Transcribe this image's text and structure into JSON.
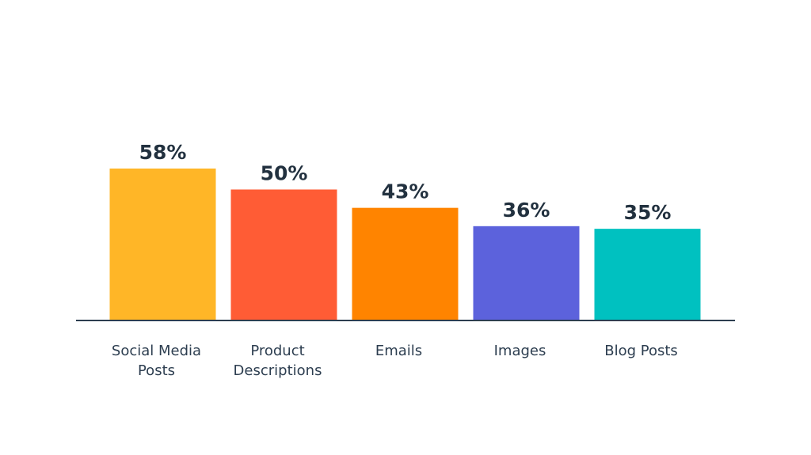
{
  "chart_data": {
    "type": "bar",
    "title": "",
    "xlabel": "",
    "ylabel": "",
    "categories": [
      [
        "Social Media",
        "Posts"
      ],
      [
        "Product",
        "Descriptions"
      ],
      [
        "Emails"
      ],
      [
        "Images"
      ],
      [
        "Blog Posts"
      ]
    ],
    "values": [
      58,
      50,
      43,
      36,
      35
    ],
    "value_labels": [
      "58%",
      "50%",
      "43%",
      "36%",
      "35%"
    ],
    "colors": [
      "#ffb627",
      "#ff5c35",
      "#ff8400",
      "#5c62dc",
      "#00c1c0"
    ],
    "ylim": [
      0,
      58
    ],
    "grid": false,
    "axis_color": "#2d3e50"
  }
}
